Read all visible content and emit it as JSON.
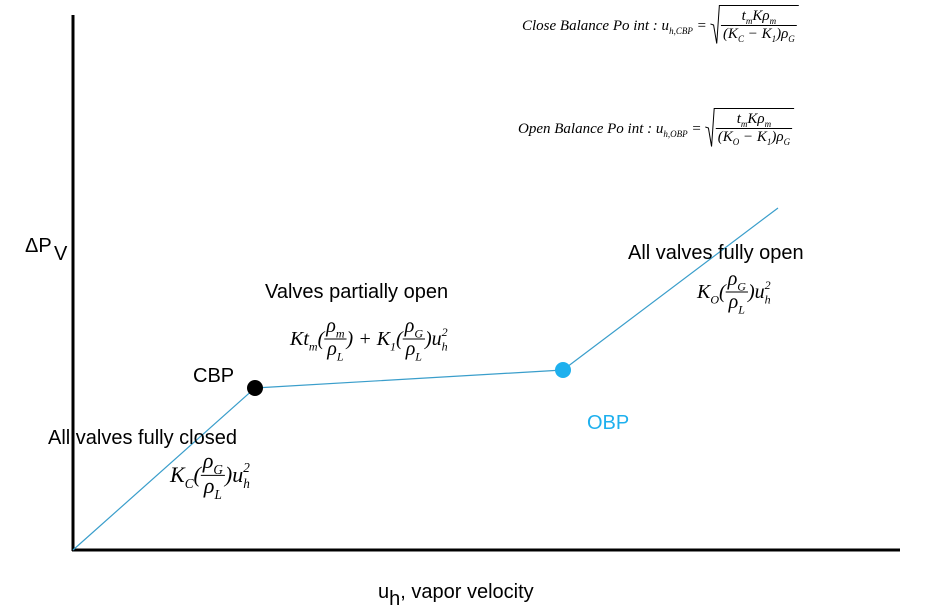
{
  "y_axis": {
    "label": "ΔP",
    "sub": "V"
  },
  "x_axis": {
    "label": "u",
    "sub": "h",
    "rest": ", vapor velocity"
  },
  "regions": [
    {
      "label": "All valves fully closed",
      "formula": [
        {
          "t": "K",
          "sub": "C"
        },
        {
          "t": "("
        },
        {
          "frac": {
            "num": [
              {
                "t": "ρ",
                "sub": "G"
              }
            ],
            "den": [
              {
                "t": "ρ",
                "sub": "L"
              }
            ]
          }
        },
        {
          "t": ")"
        },
        {
          "t": "u",
          "sub": "h",
          "sup": "2"
        }
      ]
    },
    {
      "label": "Valves partially open",
      "formula": [
        {
          "t": "Kt",
          "sub": "m"
        },
        {
          "t": "("
        },
        {
          "frac": {
            "num": [
              {
                "t": "ρ",
                "sub": "m"
              }
            ],
            "den": [
              {
                "t": "ρ",
                "sub": "L"
              }
            ]
          }
        },
        {
          "t": ") + K",
          "sub": "1"
        },
        {
          "t": "("
        },
        {
          "frac": {
            "num": [
              {
                "t": "ρ",
                "sub": "G"
              }
            ],
            "den": [
              {
                "t": "ρ",
                "sub": "L"
              }
            ]
          }
        },
        {
          "t": ")"
        },
        {
          "t": "u",
          "sub": "h",
          "sup": "2"
        }
      ]
    },
    {
      "label": "All valves fully open",
      "formula": [
        {
          "t": "K",
          "sub": "O"
        },
        {
          "t": "("
        },
        {
          "frac": {
            "num": [
              {
                "t": "ρ",
                "sub": "G"
              }
            ],
            "den": [
              {
                "t": "ρ",
                "sub": "L"
              }
            ]
          }
        },
        {
          "t": ")"
        },
        {
          "t": "u",
          "sub": "h",
          "sup": "2"
        }
      ]
    }
  ],
  "points": [
    {
      "label": "CBP"
    },
    {
      "label": "OBP"
    }
  ],
  "equations": [
    {
      "formula": [
        {
          "t": "Close Balance Po int : u",
          "sub": "h,CBP"
        },
        {
          "t": " = "
        },
        {
          "sqrt": [
            {
              "frac": {
                "num": [
                  {
                    "t": "t",
                    "sub": "m"
                  },
                  {
                    "t": "Kρ",
                    "sub": "m"
                  }
                ],
                "den": [
                  {
                    "t": "(K",
                    "sub": "C"
                  },
                  {
                    "t": " − K",
                    "sub": "1"
                  },
                  {
                    "t": ")ρ",
                    "sub": "G"
                  }
                ]
              }
            }
          ]
        }
      ]
    },
    {
      "formula": [
        {
          "t": "Open Balance Po int : u",
          "sub": "h,OBP"
        },
        {
          "t": " = "
        },
        {
          "sqrt": [
            {
              "frac": {
                "num": [
                  {
                    "t": "t",
                    "sub": "m"
                  },
                  {
                    "t": "Kρ",
                    "sub": "m"
                  }
                ],
                "den": [
                  {
                    "t": "(K",
                    "sub": "O"
                  },
                  {
                    "t": " − K",
                    "sub": "1"
                  },
                  {
                    "t": ")ρ",
                    "sub": "G"
                  }
                ]
              }
            }
          ]
        }
      ]
    }
  ]
}
